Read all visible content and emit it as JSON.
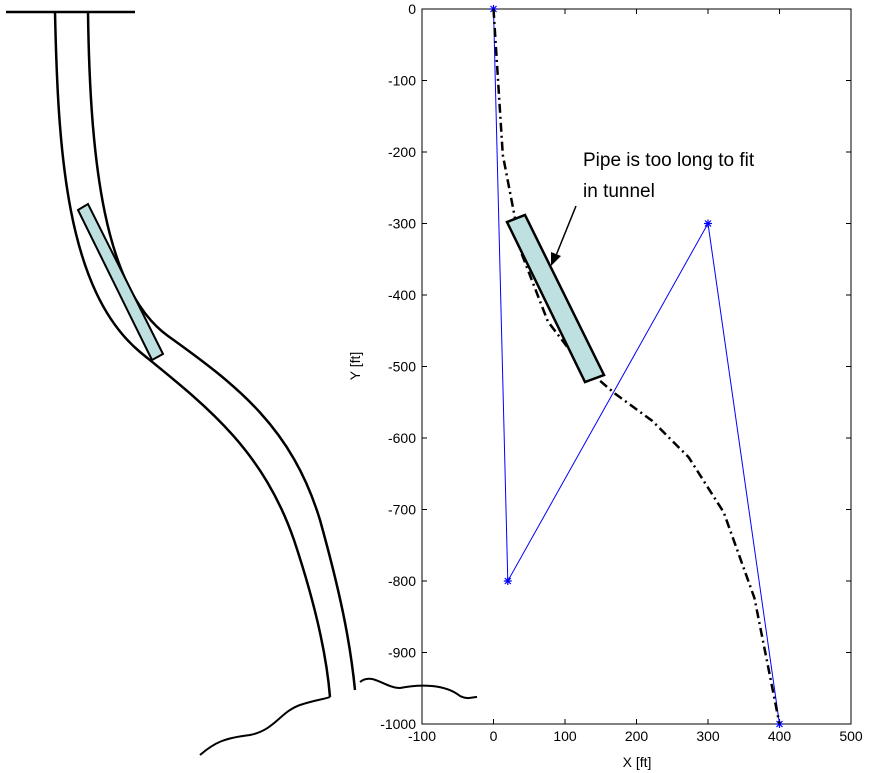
{
  "chart_data": {
    "type": "line",
    "xlabel": "X [ft]",
    "ylabel": "Y [ft]",
    "annotation": [
      "Pipe is too long to fit",
      "in tunnel"
    ],
    "xlim": [
      -100,
      500
    ],
    "xticks": [
      -100,
      0,
      100,
      200,
      300,
      400,
      500
    ],
    "ylim": [
      -1000,
      0
    ],
    "yticks": [
      -1000,
      -900,
      -800,
      -700,
      -600,
      -500,
      -400,
      -300,
      -200,
      -100,
      0
    ],
    "series": [
      {
        "color": "#0000ff",
        "style": "solid",
        "marker": "*",
        "x": [
          0,
          20,
          300,
          400
        ],
        "values": [
          0,
          -800,
          -300,
          -1000
        ]
      },
      {
        "color": "#000000",
        "style": "dashdot",
        "x": [
          0,
          13,
          40,
          76,
          121,
          170,
          222,
          273,
          322,
          365,
          400
        ],
        "values": [
          0,
          -204,
          -344,
          -437,
          -496,
          -538,
          -576,
          -627,
          -704,
          -824,
          -1000
        ]
      }
    ]
  }
}
